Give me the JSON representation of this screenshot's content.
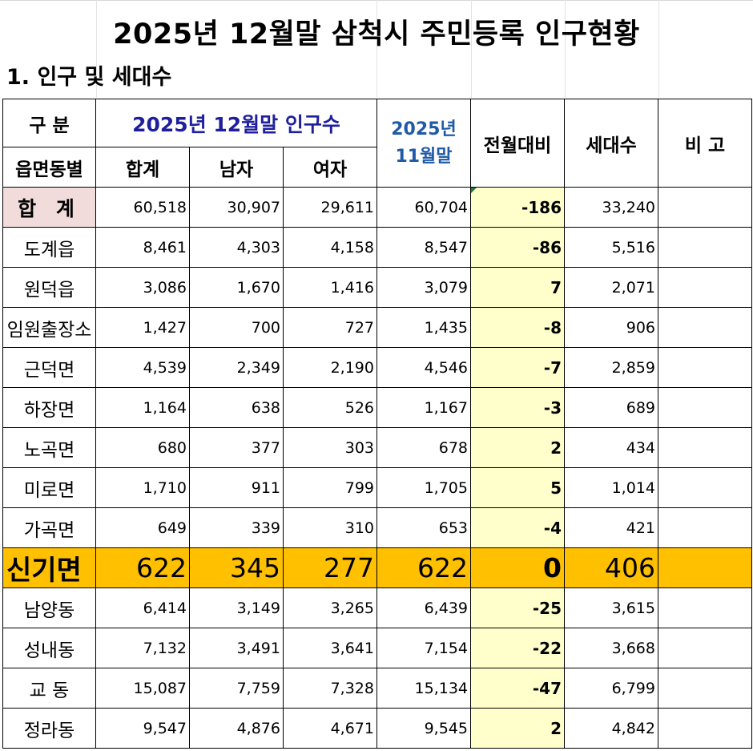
{
  "title": "2025년 12월말 삼척시 주민등록 인구현황",
  "subtitle": "1. 인구 및 세대수",
  "headers": {
    "gubun": "구 분",
    "region": "읍면동별",
    "current_group": "2025년 12월말 인구수",
    "total": "합계",
    "male": "남자",
    "female": "여자",
    "prev_line1": "2025년",
    "prev_line2": "11월말",
    "change": "전월대비",
    "households": "세대수",
    "note": "비 고"
  },
  "total_row": {
    "name": "합 계",
    "total": "60,518",
    "male": "30,907",
    "female": "29,611",
    "prev": "60,704",
    "change": "-186",
    "households": "33,240",
    "note": ""
  },
  "rows": [
    {
      "name": "도계읍",
      "total": "8,461",
      "male": "4,303",
      "female": "4,158",
      "prev": "8,547",
      "change": "-86",
      "households": "5,516",
      "note": ""
    },
    {
      "name": "원덕읍",
      "total": "3,086",
      "male": "1,670",
      "female": "1,416",
      "prev": "3,079",
      "change": "7",
      "households": "2,071",
      "note": ""
    },
    {
      "name": "임원출장소",
      "total": "1,427",
      "male": "700",
      "female": "727",
      "prev": "1,435",
      "change": "-8",
      "households": "906",
      "note": ""
    },
    {
      "name": "근덕면",
      "total": "4,539",
      "male": "2,349",
      "female": "2,190",
      "prev": "4,546",
      "change": "-7",
      "households": "2,859",
      "note": ""
    },
    {
      "name": "하장면",
      "total": "1,164",
      "male": "638",
      "female": "526",
      "prev": "1,167",
      "change": "-3",
      "households": "689",
      "note": ""
    },
    {
      "name": "노곡면",
      "total": "680",
      "male": "377",
      "female": "303",
      "prev": "678",
      "change": "2",
      "households": "434",
      "note": ""
    },
    {
      "name": "미로면",
      "total": "1,710",
      "male": "911",
      "female": "799",
      "prev": "1,705",
      "change": "5",
      "households": "1,014",
      "note": ""
    },
    {
      "name": "가곡면",
      "total": "649",
      "male": "339",
      "female": "310",
      "prev": "653",
      "change": "-4",
      "households": "421",
      "note": ""
    },
    {
      "name": "신기면",
      "total": "622",
      "male": "345",
      "female": "277",
      "prev": "622",
      "change": "0",
      "households": "406",
      "note": "",
      "highlight": true
    },
    {
      "name": "남양동",
      "total": "6,414",
      "male": "3,149",
      "female": "3,265",
      "prev": "6,439",
      "change": "-25",
      "households": "3,615",
      "note": ""
    },
    {
      "name": "성내동",
      "total": "7,132",
      "male": "3,491",
      "female": "3,641",
      "prev": "7,154",
      "change": "-22",
      "households": "3,668",
      "note": ""
    },
    {
      "name": "교 동",
      "total": "15,087",
      "male": "7,759",
      "female": "7,328",
      "prev": "15,134",
      "change": "-47",
      "households": "6,799",
      "note": ""
    },
    {
      "name": "정라동",
      "total": "9,547",
      "male": "4,876",
      "female": "4,671",
      "prev": "9,545",
      "change": "2",
      "households": "4,842",
      "note": ""
    }
  ]
}
